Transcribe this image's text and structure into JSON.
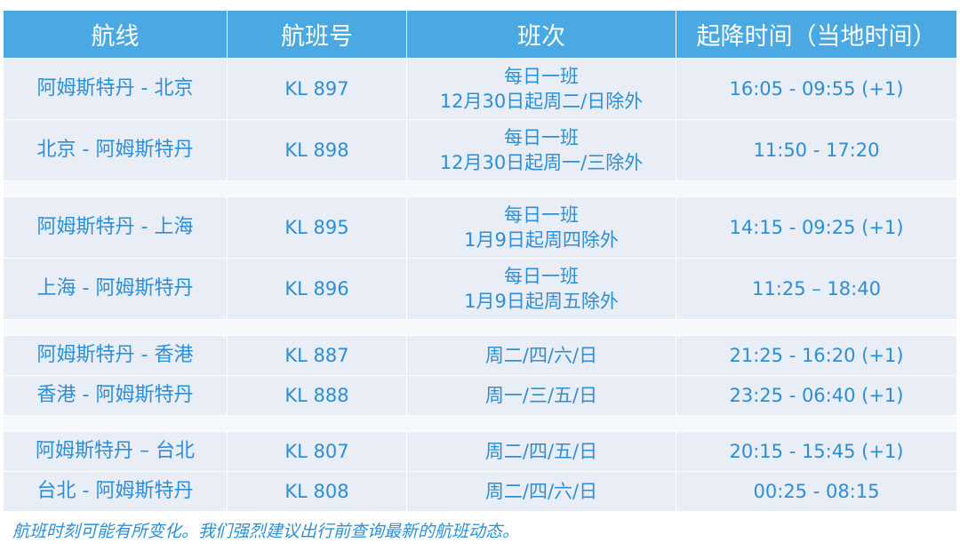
{
  "table": {
    "headers": [
      "航线",
      "航班号",
      "班次",
      "起降时间（当地时间）"
    ],
    "groups": [
      [
        {
          "route": "阿姆斯特丹 - 北京",
          "flight": "KL 897",
          "freq": [
            "每日一班",
            "12月30日起周二/日除外"
          ],
          "time": "16:05 - 09:55 (+1)"
        },
        {
          "route": "北京 - 阿姆斯特丹",
          "flight": "KL 898",
          "freq": [
            "每日一班",
            "12月30日起周一/三除外"
          ],
          "time": "11:50 - 17:20"
        }
      ],
      [
        {
          "route": "阿姆斯特丹 - 上海",
          "flight": "KL 895",
          "freq": [
            "每日一班",
            "1月9日起周四除外"
          ],
          "time": "14:15 - 09:25 (+1)"
        },
        {
          "route": "上海 - 阿姆斯特丹",
          "flight": "KL 896",
          "freq": [
            "每日一班",
            "1月9日起周五除外"
          ],
          "time": "11:25 – 18:40"
        }
      ],
      [
        {
          "route": "阿姆斯特丹 - 香港",
          "flight": "KL 887",
          "freq": [
            "周二/四/六/日"
          ],
          "time": "21:25  - 16:20 (+1)"
        },
        {
          "route": "香港 - 阿姆斯特丹",
          "flight": "KL 888",
          "freq": [
            "周一/三/五/日"
          ],
          "time": "23:25 - 06:40 (+1)"
        }
      ],
      [
        {
          "route": "阿姆斯特丹 – 台北",
          "flight": "KL 807",
          "freq": [
            "周二/四/五/日"
          ],
          "time": "20:15 - 15:45 (+1)"
        },
        {
          "route": "台北 - 阿姆斯特丹",
          "flight": "KL 808",
          "freq": [
            "周二/四/六/日"
          ],
          "time": "00:25 - 08:15"
        }
      ]
    ]
  },
  "footnote": "航班时刻可能有所变化。我们强烈建议出行前查询最新的航班动态。",
  "colors": {
    "header_bg": "#4aa8e2",
    "header_text": "#ffffff",
    "row_bg": "#e9edf5",
    "row_text": "#2c8fd6"
  }
}
